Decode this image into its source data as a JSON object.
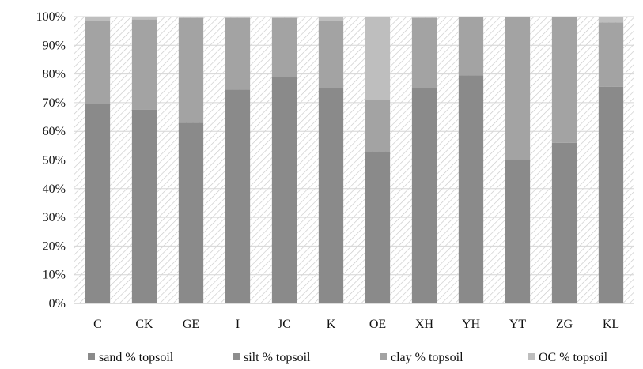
{
  "chart_data": {
    "type": "bar",
    "stacked": true,
    "percent_scale": true,
    "categories": [
      "C",
      "CK",
      "GE",
      "I",
      "JC",
      "K",
      "OE",
      "XH",
      "YH",
      "YT",
      "ZG",
      "KL"
    ],
    "series": [
      {
        "name": "sand % topsoil",
        "color": "#8a8a8a",
        "values": [
          69.5,
          67.5,
          63,
          74.5,
          79,
          75,
          53,
          75,
          79.5,
          50,
          56,
          75.5
        ]
      },
      {
        "name": "silt % topsoil",
        "color": "#8e8e8e",
        "values": [
          0,
          0,
          0,
          0,
          0,
          0,
          0,
          0,
          0,
          0,
          0,
          0
        ]
      },
      {
        "name": "clay % topsoil",
        "color": "#a3a3a3",
        "values": [
          29,
          31.5,
          36.5,
          25,
          20.5,
          23.5,
          18,
          24.5,
          20.5,
          50,
          44,
          22.5
        ]
      },
      {
        "name": "OC % topsoil",
        "color": "#bebebe",
        "values": [
          1.5,
          1,
          0.5,
          0.5,
          0.5,
          1.5,
          29,
          0.5,
          0,
          0,
          0,
          2
        ]
      }
    ],
    "yticks": [
      "0%",
      "10%",
      "20%",
      "30%",
      "40%",
      "50%",
      "60%",
      "70%",
      "80%",
      "90%",
      "100%"
    ],
    "ylim": [
      0,
      100
    ],
    "title": "",
    "xlabel": "",
    "ylabel": "",
    "grid": true,
    "background_pattern": "diagonal-hatch",
    "legend_position": "bottom"
  }
}
